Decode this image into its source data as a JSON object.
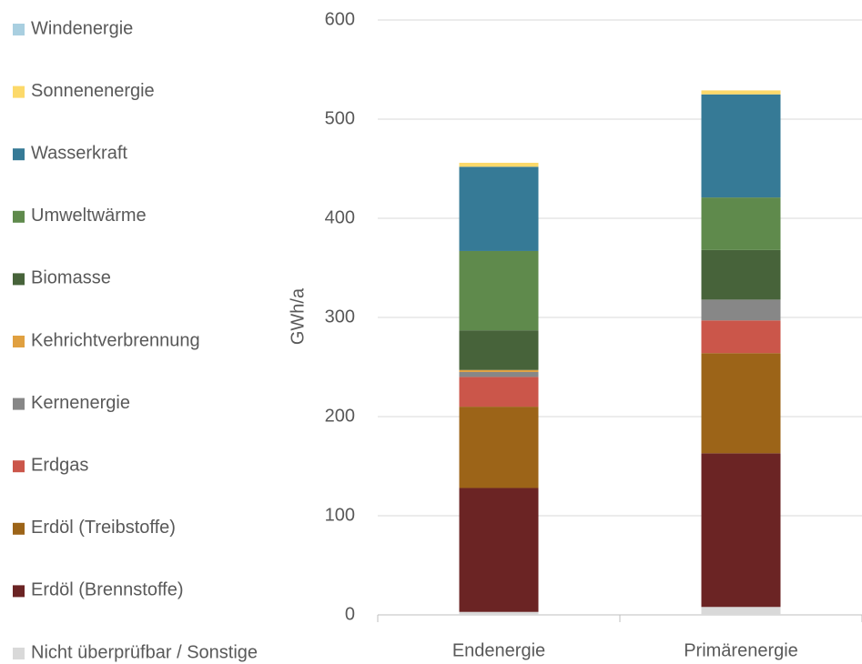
{
  "chart_data": {
    "type": "stacked_bar",
    "y_label": "GWh/a",
    "categories": [
      "Endenergie",
      "Primärenergie"
    ],
    "ylim": [
      0,
      600
    ],
    "yticks": [
      0,
      100,
      200,
      300,
      400,
      500,
      600
    ],
    "grid": true,
    "legend": "left",
    "series": [
      {
        "name": "Nicht überprüfbar / Sonstige",
        "color": "#d9d9d9",
        "values": [
          3,
          8
        ]
      },
      {
        "name": "Erdöl (Brennstoffe)",
        "color": "#6b2424",
        "values": [
          125,
          155
        ]
      },
      {
        "name": "Erdöl (Treibstoffe)",
        "color": "#9c6418",
        "values": [
          82,
          101
        ]
      },
      {
        "name": "Erdgas",
        "color": "#cb564a",
        "values": [
          30,
          33
        ]
      },
      {
        "name": "Kernenergie",
        "color": "#878787",
        "values": [
          5,
          21
        ]
      },
      {
        "name": "Kehrichtverbrennung",
        "color": "#e0a040",
        "values": [
          2,
          0
        ]
      },
      {
        "name": "Biomasse",
        "color": "#47633a",
        "values": [
          40,
          50
        ]
      },
      {
        "name": "Umweltwärme",
        "color": "#5f8a4c",
        "values": [
          80,
          53
        ]
      },
      {
        "name": "Wasserkraft",
        "color": "#367a96",
        "values": [
          85,
          104
        ]
      },
      {
        "name": "Sonnenenergie",
        "color": "#fcd96a",
        "values": [
          4,
          4
        ]
      },
      {
        "name": "Windenergie",
        "color": "#a9cfe0",
        "values": [
          0,
          0
        ]
      }
    ]
  }
}
